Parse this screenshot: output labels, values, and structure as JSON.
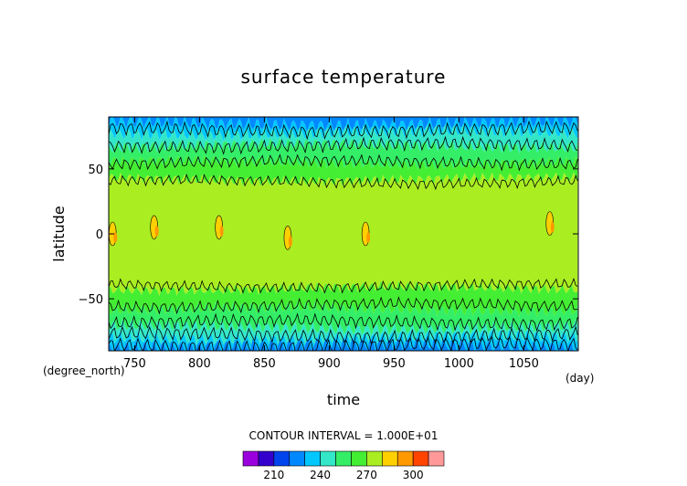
{
  "chart_data": {
    "type": "heatmap",
    "title": "surface temperature",
    "xlabel": "time",
    "ylabel": "latitude",
    "x_units": "(day)",
    "y_units": "(degree_north)",
    "xlim": [
      730,
      1092
    ],
    "ylim": [
      -90,
      90
    ],
    "x_ticks": [
      750,
      800,
      850,
      900,
      950,
      1000,
      1050
    ],
    "y_ticks": [
      50,
      0,
      -50
    ],
    "contour_interval_text": "CONTOUR INTERVAL = 1.000E+01",
    "colorbar": {
      "bins": [
        200,
        210,
        220,
        230,
        240,
        250,
        260,
        270,
        280,
        290,
        300,
        310
      ],
      "colors": [
        "#9900dd",
        "#3300cc",
        "#0044ee",
        "#0088ff",
        "#00c8ff",
        "#33e6c8",
        "#33ee66",
        "#44ee33",
        "#aaee22",
        "#ffd000",
        "#ff9900",
        "#ff4400",
        "#ff9999"
      ],
      "tick_values": [
        210,
        240,
        270,
        300
      ]
    },
    "zonal_bands": [
      {
        "lat_from": 90,
        "lat_to": 85,
        "color": "#0088ff"
      },
      {
        "lat_from": 85,
        "lat_to": 78,
        "color": "#00c8ff"
      },
      {
        "lat_from": 78,
        "lat_to": 68,
        "color": "#33e6c8"
      },
      {
        "lat_from": 68,
        "lat_to": 55,
        "color": "#33ee66"
      },
      {
        "lat_from": 55,
        "lat_to": 42,
        "color": "#44ee33"
      },
      {
        "lat_from": 42,
        "lat_to": -42,
        "color": "#aaee22"
      },
      {
        "lat_from": -42,
        "lat_to": -58,
        "color": "#44ee33"
      },
      {
        "lat_from": -58,
        "lat_to": -72,
        "color": "#33ee66"
      },
      {
        "lat_from": -72,
        "lat_to": -80,
        "color": "#33e6c8"
      },
      {
        "lat_from": -80,
        "lat_to": -86,
        "color": "#00c8ff"
      },
      {
        "lat_from": -86,
        "lat_to": -90,
        "color": "#0088ff"
      }
    ],
    "contour_lines_lat": [
      80,
      68,
      55,
      40,
      -40,
      -55,
      -68,
      -78,
      -86
    ],
    "warm_patches": [
      {
        "time": 733,
        "lat": 0
      },
      {
        "time": 765,
        "lat": 5
      },
      {
        "time": 815,
        "lat": 5
      },
      {
        "time": 868,
        "lat": -3
      },
      {
        "time": 928,
        "lat": 0
      },
      {
        "time": 1070,
        "lat": 8
      }
    ]
  }
}
